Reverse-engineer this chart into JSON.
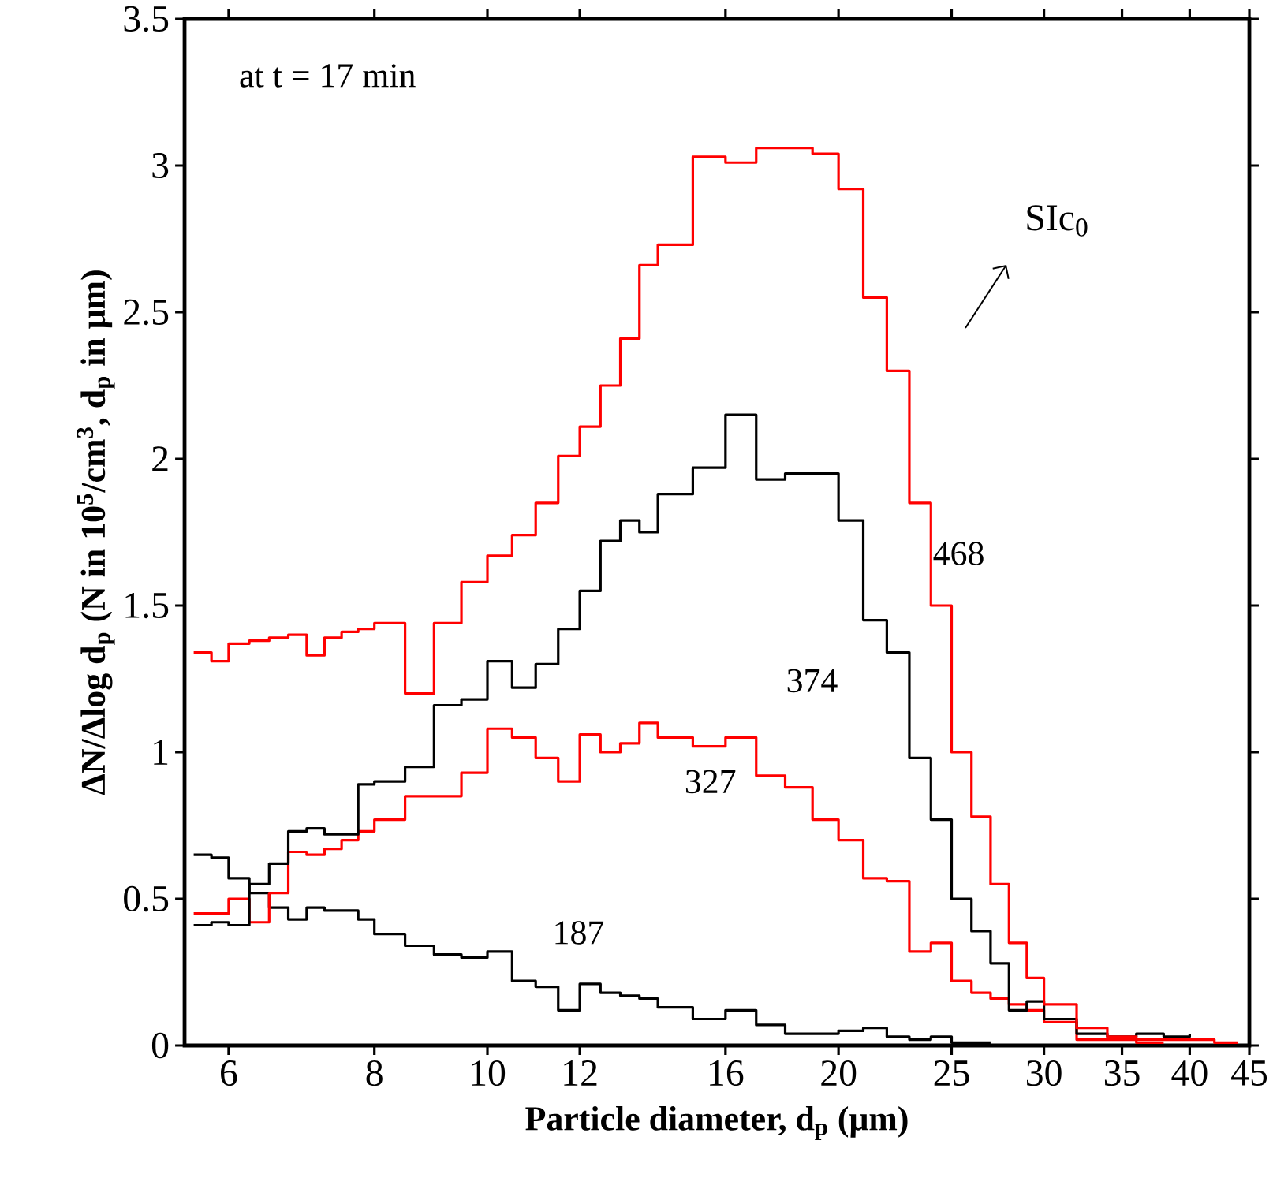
{
  "chart_data": {
    "type": "step",
    "xlabel": "Particle diameter, d$_{p}$ (μm)",
    "ylabel": "ΔN/Δlog d$_{p}$ (N in 10$^{5}$/cm$^{3}$, d$_{p}$ in μm)",
    "x": [
      5.6,
      5.8,
      6,
      6.25,
      6.5,
      6.75,
      7,
      7.25,
      7.5,
      7.75,
      8,
      8.5,
      9,
      9.5,
      10,
      10.5,
      11,
      11.5,
      12,
      12.5,
      13,
      13.5,
      14,
      15,
      16,
      17,
      18,
      19,
      20,
      21,
      22,
      23,
      24,
      25,
      26,
      27,
      28,
      29,
      30,
      32,
      34,
      36,
      38,
      40,
      42,
      44
    ],
    "series": [
      {
        "name": "468",
        "color": "#ff0000",
        "values": [
          1.34,
          1.31,
          1.37,
          1.38,
          1.39,
          1.4,
          1.33,
          1.39,
          1.41,
          1.42,
          1.44,
          1.2,
          1.44,
          1.58,
          1.67,
          1.74,
          1.85,
          2.01,
          2.11,
          2.25,
          2.41,
          2.66,
          2.73,
          3.03,
          3.01,
          3.06,
          3.06,
          3.04,
          2.92,
          2.55,
          2.3,
          1.85,
          1.5,
          1.0,
          0.78,
          0.55,
          0.35,
          0.23,
          0.14,
          0.06,
          0.03,
          0.02,
          0.02,
          0.02,
          0.01,
          0.01
        ]
      },
      {
        "name": "374",
        "color": "#000000",
        "values": [
          0.41,
          0.42,
          0.41,
          0.55,
          0.62,
          0.73,
          0.74,
          0.72,
          0.72,
          0.89,
          0.9,
          0.95,
          1.16,
          1.18,
          1.31,
          1.22,
          1.3,
          1.42,
          1.55,
          1.72,
          1.79,
          1.75,
          1.88,
          1.97,
          2.15,
          1.93,
          1.95,
          1.95,
          1.79,
          1.45,
          1.34,
          0.98,
          0.77,
          0.5,
          0.39,
          0.28,
          0.12,
          0.15,
          0.09,
          0.04,
          0.03,
          0.04,
          0.03,
          0.04,
          null,
          null
        ]
      },
      {
        "name": "327",
        "color": "#ff0000",
        "values": [
          0.45,
          0.45,
          0.5,
          0.42,
          0.52,
          0.66,
          0.65,
          0.67,
          0.7,
          0.73,
          0.77,
          0.85,
          0.85,
          0.93,
          1.08,
          1.05,
          0.98,
          0.9,
          1.06,
          1.0,
          1.03,
          1.1,
          1.05,
          1.02,
          1.05,
          0.92,
          0.88,
          0.77,
          0.7,
          0.57,
          0.56,
          0.32,
          0.35,
          0.22,
          0.18,
          0.16,
          0.14,
          0.12,
          0.08,
          0.02,
          0.02,
          0.01,
          0.01,
          null,
          null,
          null
        ]
      },
      {
        "name": "187",
        "color": "#000000",
        "values": [
          0.65,
          0.64,
          0.57,
          0.52,
          0.47,
          0.43,
          0.47,
          0.46,
          0.46,
          0.43,
          0.38,
          0.34,
          0.31,
          0.3,
          0.32,
          0.22,
          0.2,
          0.12,
          0.21,
          0.18,
          0.17,
          0.16,
          0.13,
          0.09,
          0.12,
          0.07,
          0.04,
          0.04,
          0.05,
          0.06,
          0.03,
          0.02,
          0.03,
          0.01,
          0.01,
          0.01,
          null,
          null,
          null,
          null,
          null,
          null,
          null,
          null,
          null,
          null
        ]
      }
    ],
    "xlim": [
      5.5,
      45
    ],
    "ylim": [
      0,
      3.5
    ],
    "xticks": [
      6,
      8,
      10,
      12,
      16,
      20,
      25,
      30,
      35,
      40,
      45
    ],
    "yticks": [
      0,
      0.5,
      1,
      1.5,
      2,
      2.5,
      3,
      3.5
    ],
    "log": "x",
    "annotations": [
      "at t = 17 min",
      "SIc$_{0}$"
    ]
  }
}
